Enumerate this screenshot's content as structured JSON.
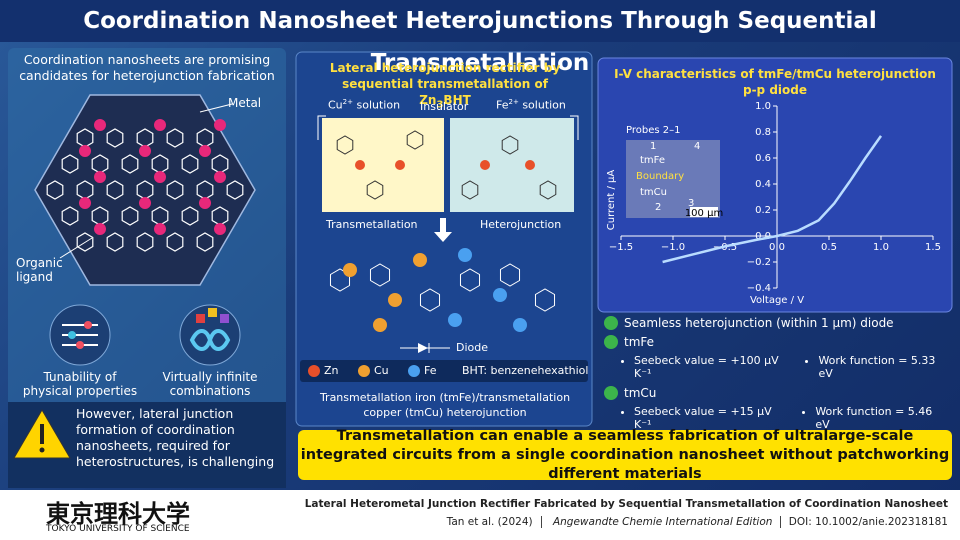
{
  "title": "Coordination Nanosheet Heterojunctions Through Sequential Transmetallation",
  "left": {
    "heading": "Coordination nanosheets are promising candidates for heterojunction fabrication",
    "metal_label": "Metal",
    "ligand_label": "Organic ligand",
    "features": [
      "Tunability of physical properties",
      "Virtually infinite combinations"
    ],
    "warning": "However, lateral junction formation of coordination nanosheets, required for heterostructures, is challenging"
  },
  "middle": {
    "heading": {
      "line": "Lateral heterojunction rectifier by sequential transmetallation of Zn",
      "sub": "3",
      "end": "BHT"
    },
    "cu_solution": {
      "ion": "Cu",
      "charge": "2+",
      "rest": " solution"
    },
    "insulator": "Insulator",
    "fe_solution": {
      "ion": "Fe",
      "charge": "2+",
      "rest": " solution"
    },
    "transmetallation": "Transmetallation",
    "heterojunction": "Heterojunction",
    "diode": "Diode",
    "legend": [
      "Zn",
      "Cu",
      "Fe",
      "BHT: benzenehexathiol"
    ],
    "caption": "Transmetallation iron (tmFe)/transmetallation copper (tmCu) heterojunction"
  },
  "chart": {
    "type": "line",
    "title": "I-V characteristics of tmFe/tmCu heterojunction p-p diode",
    "x_label": "Voltage / V",
    "y_label": "Current / μA",
    "x": [
      -1.1,
      -0.8,
      -0.5,
      -0.2,
      0.0,
      0.2,
      0.4,
      0.55,
      0.7,
      0.85,
      1.0
    ],
    "series": [
      {
        "color": "#b9dcff",
        "values": [
          -0.2,
          -0.14,
          -0.08,
          -0.03,
          0.0,
          0.04,
          0.12,
          0.25,
          0.42,
          0.6,
          0.77
        ]
      }
    ],
    "xlim": [
      -1.5,
      1.5
    ],
    "ylim": [
      -0.4,
      1.0
    ],
    "xticks": [
      {
        "value": -1.5,
        "label": "−1.5"
      },
      {
        "value": -1.0,
        "label": "−1.0"
      },
      {
        "value": -0.5,
        "label": "−0.5"
      },
      {
        "value": 0.0,
        "label": "0.0"
      },
      0.5,
      {
        "value": 1.0,
        "label": "1.0"
      },
      1.5
    ],
    "yticks": [
      {
        "value": -0.4,
        "label": "−0.4"
      },
      {
        "value": -0.2,
        "label": "−0.2"
      },
      {
        "value": 0.0,
        "label": "0.0"
      },
      0.2,
      0.4,
      0.6,
      0.8,
      {
        "value": 1.0,
        "label": "1.0"
      }
    ],
    "inset": {
      "title": "Probes 2–1",
      "labels": [
        "tmFe",
        "Boundary",
        "tmCu"
      ],
      "probes": [
        "1",
        "2",
        "3",
        "4"
      ],
      "scale": "100 μm"
    }
  },
  "results": {
    "main": "Seamless heterojunction (within 1 μm) diode",
    "items": [
      {
        "name": "tmFe",
        "seebeck": "Seebeck value = +100 μV K⁻¹",
        "work": "Work function = 5.33 eV"
      },
      {
        "name": "tmCu",
        "seebeck": "Seebeck value = +15 μV K⁻¹",
        "work": "Work function = 5.46 eV"
      }
    ]
  },
  "banner": "Transmetallation can enable a seamless fabrication of ultralarge-scale integrated circuits from a single coordination nanosheet without patchworking different materials",
  "footer": {
    "university": "東京理科大学",
    "university_en": "TOKYO UNIVERSITY OF SCIENCE",
    "paper_title": "Lateral Heterometal Junction Rectifier Fabricated by Sequential Transmetallation of Coordination Nanosheet",
    "authors": "Tan et al. (2024)",
    "journal": "Angewandte Chemie International Edition",
    "doi": "DOI: 10.1002/anie.202318181"
  }
}
